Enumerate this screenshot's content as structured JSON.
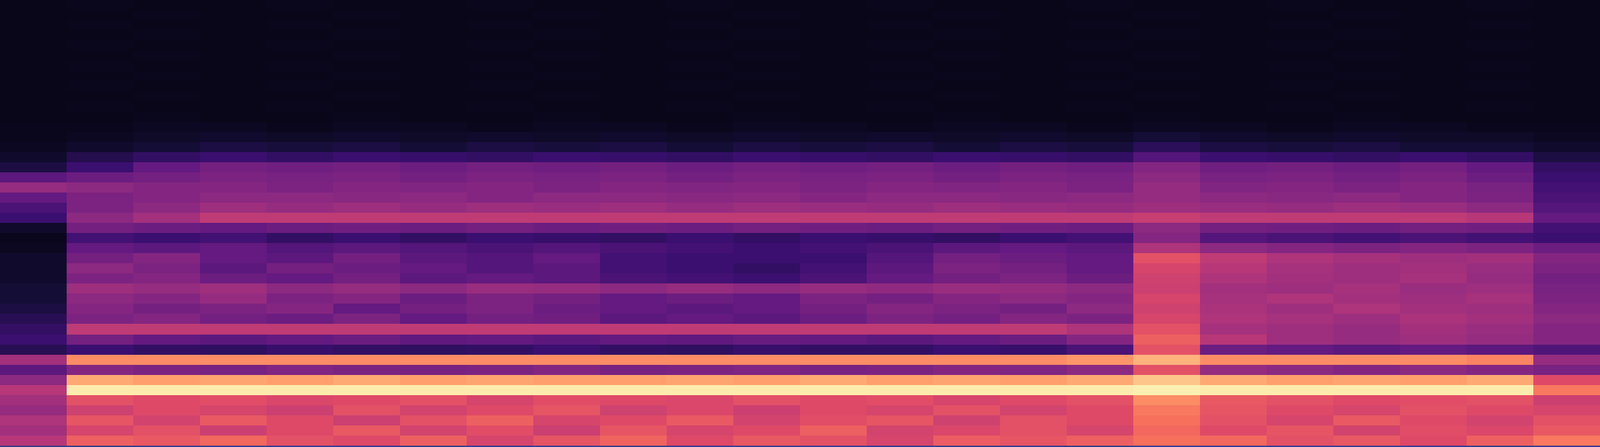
{
  "chart_data": {
    "type": "heatmap",
    "x": [
      0,
      1,
      2,
      3,
      4,
      5,
      6,
      7,
      8,
      9,
      10,
      11,
      12,
      13,
      14,
      15,
      16,
      17,
      18,
      19,
      20,
      21,
      22,
      23
    ],
    "y": [
      0,
      1,
      2,
      3,
      4,
      5,
      6,
      7,
      8,
      9,
      10,
      11,
      12,
      13,
      14,
      15,
      16,
      17,
      18,
      19,
      20,
      21,
      22,
      23,
      24,
      25,
      26,
      27,
      28,
      29,
      30,
      31,
      32,
      33,
      34,
      35,
      36,
      37,
      38,
      39,
      40,
      41,
      42,
      43
    ],
    "z": [
      [
        50,
        66,
        64,
        68,
        62,
        60,
        66,
        58,
        63,
        67,
        60,
        64,
        62,
        58,
        65,
        63,
        66,
        70,
        68,
        62,
        64,
        60,
        66,
        72
      ],
      [
        45,
        58,
        62,
        55,
        60,
        64,
        57,
        61,
        55,
        63,
        58,
        60,
        66,
        57,
        59,
        62,
        58,
        68,
        60,
        63,
        57,
        61,
        59,
        64
      ],
      [
        48,
        63,
        57,
        64,
        60,
        55,
        62,
        66,
        58,
        60,
        64,
        57,
        61,
        63,
        56,
        62,
        60,
        70,
        62,
        58,
        64,
        60,
        57,
        62
      ],
      [
        42,
        56,
        60,
        58,
        55,
        62,
        57,
        60,
        63,
        56,
        59,
        55,
        60,
        58,
        62,
        57,
        60,
        72,
        63,
        60,
        58,
        62,
        60,
        58
      ],
      [
        45,
        62,
        60,
        61,
        59,
        60,
        62,
        58,
        61,
        60,
        59,
        62,
        60,
        61,
        58,
        60,
        62,
        76,
        64,
        62,
        60,
        61,
        62,
        55
      ],
      [
        50,
        96,
        96,
        96,
        96,
        96,
        96,
        96,
        96,
        96,
        96,
        96,
        96,
        96,
        96,
        96,
        96,
        97,
        96,
        96,
        96,
        96,
        96,
        72
      ],
      [
        40,
        82,
        80,
        81,
        80,
        82,
        80,
        81,
        80,
        80,
        81,
        80,
        82,
        80,
        81,
        80,
        82,
        88,
        82,
        80,
        81,
        80,
        82,
        60
      ],
      [
        28,
        38,
        36,
        35,
        37,
        36,
        35,
        36,
        38,
        35,
        36,
        37,
        35,
        36,
        38,
        37,
        40,
        62,
        42,
        40,
        38,
        40,
        38,
        35
      ],
      [
        45,
        76,
        76,
        76,
        76,
        76,
        76,
        76,
        76,
        76,
        76,
        76,
        76,
        76,
        76,
        76,
        78,
        84,
        76,
        76,
        76,
        76,
        74,
        42
      ],
      [
        15,
        20,
        18,
        17,
        19,
        18,
        17,
        18,
        20,
        18,
        17,
        19,
        18,
        18,
        20,
        19,
        24,
        62,
        32,
        30,
        28,
        30,
        28,
        25
      ],
      [
        20,
        34,
        30,
        28,
        30,
        32,
        29,
        30,
        28,
        30,
        29,
        31,
        30,
        28,
        30,
        32,
        38,
        66,
        50,
        44,
        42,
        44,
        42,
        38
      ],
      [
        18,
        52,
        52,
        52,
        52,
        52,
        52,
        52,
        52,
        52,
        52,
        52,
        52,
        52,
        52,
        52,
        48,
        62,
        46,
        44,
        42,
        45,
        43,
        38
      ],
      [
        15,
        36,
        38,
        34,
        32,
        36,
        30,
        34,
        33,
        28,
        30,
        28,
        32,
        36,
        34,
        38,
        36,
        58,
        48,
        46,
        44,
        47,
        45,
        40
      ],
      [
        12,
        38,
        34,
        36,
        38,
        30,
        34,
        36,
        32,
        30,
        28,
        30,
        34,
        38,
        36,
        34,
        40,
        56,
        47,
        44,
        48,
        45,
        44,
        38
      ],
      [
        10,
        40,
        38,
        42,
        36,
        38,
        32,
        36,
        34,
        30,
        32,
        30,
        36,
        34,
        38,
        40,
        38,
        58,
        46,
        48,
        45,
        44,
        46,
        36
      ],
      [
        10,
        44,
        42,
        44,
        40,
        42,
        40,
        43,
        42,
        40,
        42,
        40,
        42,
        41,
        43,
        42,
        40,
        55,
        45,
        44,
        46,
        43,
        44,
        35
      ],
      [
        8,
        36,
        38,
        32,
        30,
        34,
        28,
        30,
        28,
        24,
        22,
        20,
        24,
        30,
        34,
        36,
        32,
        56,
        48,
        45,
        44,
        46,
        42,
        34
      ],
      [
        8,
        40,
        36,
        28,
        34,
        32,
        30,
        26,
        28,
        22,
        20,
        18,
        22,
        28,
        36,
        34,
        30,
        58,
        50,
        46,
        44,
        45,
        43,
        36
      ],
      [
        8,
        34,
        38,
        30,
        28,
        34,
        28,
        26,
        30,
        22,
        20,
        20,
        20,
        26,
        34,
        32,
        30,
        62,
        52,
        48,
        46,
        44,
        45,
        38
      ],
      [
        6,
        30,
        28,
        30,
        26,
        28,
        26,
        24,
        26,
        24,
        22,
        20,
        22,
        24,
        28,
        30,
        28,
        48,
        40,
        38,
        36,
        38,
        36,
        32
      ],
      [
        5,
        22,
        20,
        22,
        18,
        20,
        18,
        20,
        19,
        18,
        20,
        18,
        20,
        19,
        18,
        20,
        22,
        38,
        26,
        24,
        22,
        24,
        22,
        20
      ],
      [
        8,
        34,
        32,
        30,
        32,
        33,
        32,
        34,
        32,
        33,
        32,
        34,
        33,
        32,
        34,
        33,
        32,
        40,
        34,
        33,
        32,
        34,
        33,
        22
      ],
      [
        20,
        40,
        45,
        52,
        52,
        52,
        52,
        52,
        52,
        52,
        52,
        52,
        52,
        52,
        52,
        52,
        52,
        54,
        52,
        52,
        52,
        52,
        50,
        30
      ],
      [
        24,
        36,
        40,
        44,
        42,
        44,
        42,
        44,
        43,
        44,
        42,
        44,
        43,
        42,
        44,
        43,
        42,
        44,
        43,
        42,
        44,
        43,
        40,
        26
      ],
      [
        30,
        36,
        38,
        40,
        40,
        39,
        40,
        38,
        40,
        40,
        39,
        40,
        38,
        40,
        40,
        39,
        40,
        42,
        40,
        39,
        40,
        38,
        36,
        24
      ],
      [
        42,
        40,
        38,
        38,
        36,
        38,
        37,
        38,
        36,
        38,
        37,
        38,
        36,
        38,
        37,
        38,
        36,
        42,
        37,
        38,
        36,
        38,
        35,
        22
      ],
      [
        28,
        32,
        34,
        36,
        35,
        36,
        34,
        36,
        35,
        36,
        34,
        36,
        35,
        36,
        34,
        36,
        35,
        40,
        35,
        36,
        34,
        36,
        32,
        20
      ],
      [
        12,
        20,
        30,
        34,
        33,
        34,
        32,
        34,
        33,
        34,
        32,
        34,
        33,
        34,
        32,
        34,
        33,
        38,
        33,
        34,
        32,
        34,
        30,
        18
      ],
      [
        8,
        14,
        18,
        20,
        18,
        20,
        19,
        18,
        20,
        19,
        18,
        20,
        19,
        18,
        20,
        19,
        18,
        26,
        20,
        19,
        18,
        20,
        18,
        12
      ],
      [
        6,
        8,
        10,
        12,
        11,
        12,
        10,
        12,
        11,
        12,
        10,
        12,
        11,
        12,
        10,
        12,
        11,
        16,
        12,
        11,
        12,
        10,
        10,
        8
      ],
      [
        5,
        6,
        7,
        8,
        7,
        8,
        7,
        8,
        7,
        8,
        7,
        8,
        7,
        8,
        7,
        8,
        7,
        10,
        8,
        7,
        8,
        7,
        7,
        6
      ],
      [
        5,
        5,
        6,
        6,
        5,
        6,
        6,
        5,
        6,
        6,
        5,
        6,
        6,
        5,
        6,
        6,
        5,
        6,
        6,
        5,
        6,
        6,
        5,
        5
      ],
      [
        4,
        4,
        5,
        4,
        4,
        5,
        4,
        4,
        5,
        4,
        4,
        5,
        4,
        4,
        5,
        4,
        4,
        5,
        4,
        4,
        5,
        4,
        4,
        4
      ],
      [
        4,
        5,
        4,
        4,
        5,
        4,
        4,
        5,
        4,
        4,
        5,
        4,
        4,
        5,
        4,
        4,
        5,
        4,
        4,
        5,
        4,
        4,
        5,
        4
      ],
      [
        4,
        4,
        5,
        4,
        4,
        5,
        4,
        4,
        5,
        4,
        4,
        5,
        4,
        4,
        5,
        4,
        4,
        5,
        4,
        4,
        5,
        4,
        4,
        4
      ],
      [
        4,
        5,
        4,
        4,
        5,
        4,
        4,
        5,
        4,
        4,
        5,
        4,
        4,
        5,
        4,
        4,
        5,
        4,
        4,
        5,
        4,
        4,
        5,
        4
      ],
      [
        4,
        4,
        5,
        4,
        4,
        5,
        4,
        4,
        5,
        4,
        4,
        5,
        4,
        4,
        5,
        4,
        4,
        5,
        4,
        4,
        5,
        4,
        4,
        4
      ],
      [
        4,
        5,
        4,
        4,
        5,
        4,
        4,
        5,
        4,
        4,
        5,
        4,
        4,
        5,
        4,
        4,
        5,
        4,
        4,
        5,
        4,
        4,
        5,
        4
      ],
      [
        4,
        4,
        5,
        4,
        4,
        5,
        4,
        4,
        5,
        4,
        4,
        5,
        4,
        4,
        5,
        4,
        4,
        5,
        4,
        4,
        5,
        4,
        4,
        4
      ],
      [
        4,
        5,
        4,
        4,
        5,
        4,
        4,
        5,
        4,
        4,
        5,
        4,
        4,
        5,
        4,
        4,
        5,
        4,
        4,
        5,
        4,
        4,
        5,
        4
      ],
      [
        4,
        4,
        5,
        4,
        4,
        5,
        4,
        4,
        5,
        4,
        4,
        5,
        4,
        4,
        5,
        4,
        4,
        5,
        4,
        4,
        5,
        4,
        4,
        4
      ],
      [
        4,
        5,
        4,
        4,
        5,
        4,
        4,
        5,
        4,
        4,
        5,
        4,
        4,
        5,
        4,
        4,
        5,
        4,
        4,
        5,
        4,
        4,
        5,
        4
      ],
      [
        4,
        4,
        5,
        4,
        4,
        5,
        4,
        4,
        5,
        4,
        4,
        5,
        4,
        4,
        5,
        4,
        4,
        5,
        4,
        4,
        5,
        4,
        4,
        4
      ],
      [
        4,
        5,
        4,
        4,
        5,
        4,
        4,
        5,
        4,
        4,
        5,
        4,
        4,
        5,
        4,
        4,
        5,
        4,
        4,
        5,
        4,
        4,
        5,
        4
      ]
    ],
    "xlim": [
      -0.5,
      23.5
    ],
    "ylim": [
      -0.5,
      43.5
    ],
    "zlim": [
      0,
      100
    ],
    "tick_labels": false,
    "grid": false
  }
}
